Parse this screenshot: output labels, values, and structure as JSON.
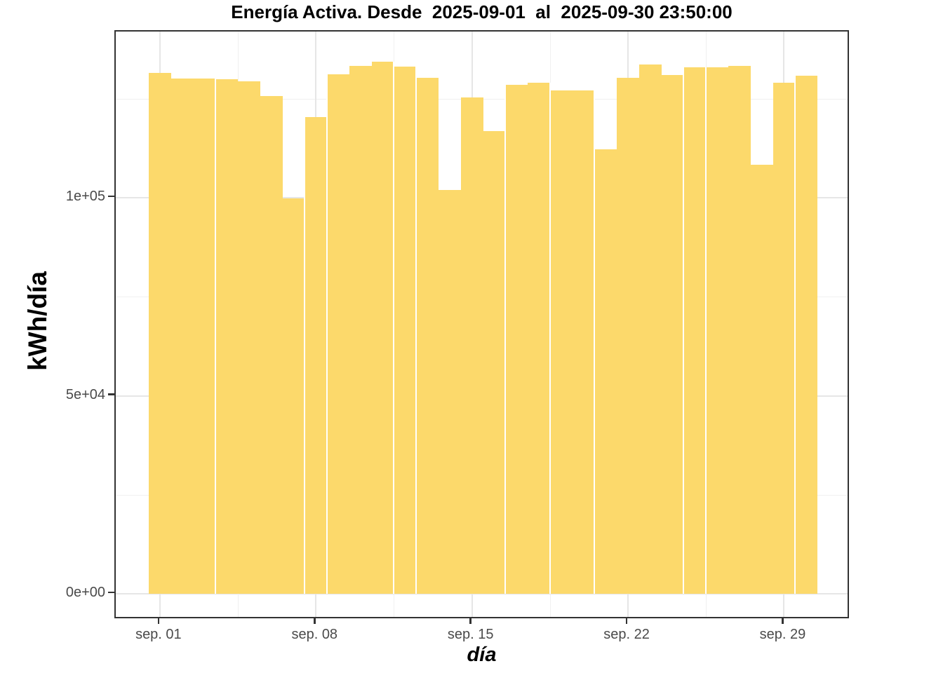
{
  "chart_data": {
    "type": "bar",
    "title": "Energía Activa. Desde  2025-09-01  al  2025-09-30 23:50:00",
    "xlabel": "día",
    "ylabel": "kWh/día",
    "categories": [
      "2025-09-01",
      "2025-09-02",
      "2025-09-03",
      "2025-09-04",
      "2025-09-05",
      "2025-09-06",
      "2025-09-07",
      "2025-09-08",
      "2025-09-09",
      "2025-09-10",
      "2025-09-11",
      "2025-09-12",
      "2025-09-13",
      "2025-09-14",
      "2025-09-15",
      "2025-09-16",
      "2025-09-17",
      "2025-09-18",
      "2025-09-19",
      "2025-09-20",
      "2025-09-21",
      "2025-09-22",
      "2025-09-23",
      "2025-09-24",
      "2025-09-25",
      "2025-09-26",
      "2025-09-27",
      "2025-09-28",
      "2025-09-29",
      "2025-09-30"
    ],
    "values": [
      131500,
      130100,
      130100,
      129900,
      129400,
      125600,
      99800,
      120300,
      131200,
      133200,
      134300,
      133100,
      130200,
      101900,
      125300,
      116800,
      128500,
      129100,
      127100,
      127100,
      112300,
      130200,
      133600,
      131000,
      133000,
      133000,
      133200,
      108400,
      129100,
      130800
    ],
    "x_ticks": [
      {
        "label": "sep. 01",
        "day": 1
      },
      {
        "label": "sep. 08",
        "day": 8
      },
      {
        "label": "sep. 15",
        "day": 15
      },
      {
        "label": "sep. 22",
        "day": 22
      },
      {
        "label": "sep. 29",
        "day": 29
      }
    ],
    "y_ticks": [
      {
        "label": "0e+00",
        "value": 0
      },
      {
        "label": "5e+04",
        "value": 50000
      },
      {
        "label": "1e+05",
        "value": 100000
      }
    ],
    "y_minor_values": [
      25000,
      75000,
      125000
    ],
    "ylim": [
      0,
      141800
    ],
    "grid": "major+minor",
    "legend_position": "none",
    "seams_after_days": [
      3,
      7,
      8,
      11,
      12,
      16,
      18,
      20,
      24,
      25,
      29
    ],
    "bar_color": "#FCD96B"
  },
  "colors": {
    "bar": "#FCD96B",
    "grid_major": "#E6E6E6",
    "grid_minor": "#F0F0F0",
    "panel_border": "#333333",
    "tick_text": "#4A4A4A",
    "title_text": "#000000",
    "background": "#FFFFFF"
  }
}
